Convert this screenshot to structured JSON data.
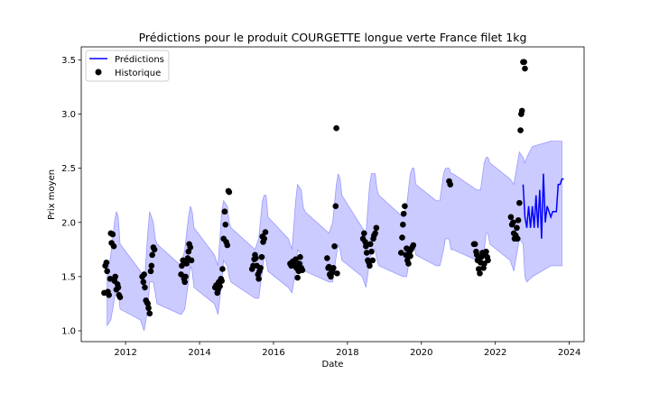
{
  "chart_data": {
    "type": "line",
    "title": "Prédictions pour le produit COURGETTE longue verte France filet 1kg",
    "xlabel": "Date",
    "ylabel": "Prix moyen",
    "xlim": [
      2010.8,
      2024.4
    ],
    "ylim": [
      0.9,
      3.62
    ],
    "x_ticks": [
      2012,
      2014,
      2016,
      2018,
      2020,
      2022,
      2024
    ],
    "y_ticks": [
      1.0,
      1.5,
      2.0,
      2.5,
      3.0,
      3.5
    ],
    "y_tick_labels": [
      "1.0",
      "1.5",
      "2.0",
      "2.5",
      "3.0",
      "3.5"
    ],
    "legend": {
      "placement": "top-left",
      "items": [
        {
          "label": "Prédictions",
          "kind": "line",
          "color": "#0000ff"
        },
        {
          "label": "Historique",
          "kind": "marker",
          "color": "#000000"
        }
      ]
    },
    "colors": {
      "prediction_line": "#0000ff",
      "interval_fill": "#c8c8ff",
      "interval_edge": "#9a9aff",
      "history": "#000000"
    },
    "confidence_band": {
      "x": [
        2011.5,
        2011.6,
        2011.7,
        2011.75,
        2011.8,
        2011.85,
        2012.4,
        2012.5,
        2012.6,
        2012.65,
        2012.75,
        2012.8,
        2012.85,
        2013.5,
        2013.6,
        2013.7,
        2013.75,
        2013.8,
        2013.85,
        2014.4,
        2014.5,
        2014.6,
        2014.65,
        2014.75,
        2014.8,
        2014.85,
        2015.5,
        2015.6,
        2015.7,
        2015.75,
        2015.8,
        2015.85,
        2016.4,
        2016.5,
        2016.6,
        2016.65,
        2016.75,
        2016.8,
        2016.85,
        2017.5,
        2017.6,
        2017.7,
        2017.75,
        2017.8,
        2017.85,
        2018.4,
        2018.5,
        2018.6,
        2018.65,
        2018.75,
        2018.8,
        2018.85,
        2019.5,
        2019.6,
        2019.7,
        2019.75,
        2019.8,
        2019.85,
        2020.4,
        2020.5,
        2020.6,
        2020.65,
        2020.75,
        2020.8,
        2020.85,
        2021.5,
        2021.6,
        2021.7,
        2021.75,
        2021.8,
        2021.85,
        2022.4,
        2022.5,
        2022.6,
        2022.65,
        2022.75,
        2022.8,
        2022.85,
        2023.0,
        2023.5,
        2023.8
      ],
      "upper": [
        1.5,
        1.7,
        2.0,
        2.1,
        2.05,
        1.8,
        1.55,
        1.4,
        1.9,
        2.1,
        2.0,
        1.85,
        1.8,
        1.6,
        1.75,
        2.05,
        2.15,
        2.1,
        1.95,
        1.7,
        1.6,
        2.1,
        2.2,
        2.15,
        2.0,
        1.95,
        1.75,
        1.85,
        2.2,
        2.25,
        2.25,
        2.05,
        1.85,
        1.75,
        2.2,
        2.35,
        2.3,
        2.15,
        2.1,
        1.9,
        2.0,
        2.35,
        2.45,
        2.4,
        2.25,
        1.95,
        1.9,
        2.35,
        2.45,
        2.45,
        2.3,
        2.25,
        2.05,
        2.15,
        2.45,
        2.5,
        2.5,
        2.35,
        2.2,
        2.2,
        2.45,
        2.5,
        2.5,
        2.45,
        2.45,
        2.3,
        2.3,
        2.55,
        2.6,
        2.6,
        2.55,
        2.4,
        2.35,
        2.55,
        2.65,
        2.6,
        2.55,
        2.6,
        2.7,
        2.75,
        2.75
      ],
      "lower": [
        1.05,
        1.1,
        1.3,
        1.4,
        1.4,
        1.2,
        1.1,
        1.0,
        1.2,
        1.45,
        1.45,
        1.35,
        1.25,
        1.15,
        1.2,
        1.45,
        1.6,
        1.55,
        1.4,
        1.25,
        1.15,
        1.45,
        1.65,
        1.6,
        1.5,
        1.45,
        1.3,
        1.3,
        1.55,
        1.7,
        1.65,
        1.55,
        1.4,
        1.35,
        1.55,
        1.75,
        1.7,
        1.6,
        1.55,
        1.45,
        1.45,
        1.7,
        1.8,
        1.75,
        1.65,
        1.5,
        1.4,
        1.65,
        1.75,
        1.75,
        1.65,
        1.6,
        1.5,
        1.5,
        1.7,
        1.8,
        1.8,
        1.7,
        1.6,
        1.6,
        1.75,
        1.85,
        1.85,
        1.75,
        1.75,
        1.65,
        1.6,
        1.75,
        1.9,
        1.9,
        1.8,
        1.65,
        1.55,
        1.75,
        1.85,
        1.8,
        1.5,
        1.45,
        1.5,
        1.6,
        1.6
      ]
    },
    "prediction": {
      "x": [
        2022.75,
        2022.8,
        2022.85,
        2022.9,
        2022.95,
        2023.0,
        2023.05,
        2023.1,
        2023.15,
        2023.2,
        2023.25,
        2023.3,
        2023.35,
        2023.4,
        2023.45,
        2023.5,
        2023.55,
        2023.6,
        2023.65,
        2023.7,
        2023.75,
        2023.8,
        2023.85
      ],
      "y": [
        2.35,
        2.05,
        1.95,
        2.15,
        1.95,
        2.15,
        1.95,
        2.25,
        1.95,
        2.3,
        1.85,
        2.45,
        2.0,
        2.15,
        2.1,
        2.05,
        2.1,
        2.1,
        2.1,
        2.35,
        2.35,
        2.4,
        2.4
      ]
    },
    "history": {
      "x": [
        2011.42,
        2011.45,
        2011.48,
        2011.5,
        2011.52,
        2011.55,
        2011.58,
        2011.6,
        2011.62,
        2011.65,
        2011.68,
        2011.7,
        2011.72,
        2011.75,
        2011.78,
        2011.8,
        2011.82,
        2011.85,
        2012.45,
        2012.48,
        2012.5,
        2012.52,
        2012.55,
        2012.58,
        2012.6,
        2012.62,
        2012.65,
        2012.68,
        2012.7,
        2012.72,
        2012.75,
        2012.78,
        2013.5,
        2013.52,
        2013.55,
        2013.58,
        2013.6,
        2013.62,
        2013.65,
        2013.68,
        2013.7,
        2013.72,
        2013.75,
        2013.78,
        2014.42,
        2014.45,
        2014.48,
        2014.5,
        2014.52,
        2014.55,
        2014.58,
        2014.6,
        2014.62,
        2014.65,
        2014.68,
        2014.7,
        2014.72,
        2014.75,
        2014.78,
        2014.8,
        2015.42,
        2015.45,
        2015.48,
        2015.5,
        2015.52,
        2015.55,
        2015.58,
        2015.6,
        2015.62,
        2015.65,
        2015.68,
        2015.7,
        2015.72,
        2015.75,
        2015.78,
        2016.45,
        2016.48,
        2016.5,
        2016.52,
        2016.55,
        2016.58,
        2016.6,
        2016.62,
        2016.65,
        2016.68,
        2016.7,
        2016.72,
        2016.75,
        2016.78,
        2017.45,
        2017.48,
        2017.5,
        2017.52,
        2017.55,
        2017.58,
        2017.6,
        2017.62,
        2017.65,
        2017.68,
        2017.7,
        2017.72,
        2018.42,
        2018.45,
        2018.48,
        2018.5,
        2018.52,
        2018.55,
        2018.58,
        2018.6,
        2018.62,
        2018.65,
        2018.68,
        2018.7,
        2018.72,
        2018.75,
        2018.78,
        2019.45,
        2019.48,
        2019.5,
        2019.52,
        2019.55,
        2019.58,
        2019.6,
        2019.62,
        2019.65,
        2019.68,
        2019.7,
        2019.72,
        2019.75,
        2019.78,
        2020.75,
        2020.78,
        2021.42,
        2021.45,
        2021.48,
        2021.5,
        2021.52,
        2021.55,
        2021.58,
        2021.6,
        2021.62,
        2021.65,
        2021.68,
        2021.7,
        2021.72,
        2021.75,
        2021.78,
        2021.8,
        2022.42,
        2022.45,
        2022.48,
        2022.5,
        2022.52,
        2022.55,
        2022.58,
        2022.6,
        2022.62,
        2022.65,
        2022.68,
        2022.7,
        2022.72,
        2022.75,
        2022.78,
        2022.8
      ],
      "y": [
        1.35,
        1.6,
        1.63,
        1.55,
        1.36,
        1.33,
        1.48,
        1.9,
        1.81,
        1.89,
        1.78,
        1.46,
        1.5,
        1.38,
        1.43,
        1.4,
        1.33,
        1.31,
        1.5,
        1.45,
        1.52,
        1.4,
        1.28,
        1.26,
        1.25,
        1.21,
        1.16,
        1.55,
        1.6,
        1.7,
        1.77,
        1.75,
        1.52,
        1.6,
        1.65,
        1.48,
        1.45,
        1.5,
        1.62,
        1.67,
        1.73,
        1.8,
        1.77,
        1.65,
        1.4,
        1.42,
        1.35,
        1.38,
        1.45,
        1.41,
        1.48,
        1.46,
        1.57,
        1.85,
        2.1,
        1.98,
        1.82,
        1.79,
        2.29,
        2.28,
        1.57,
        1.6,
        1.66,
        1.7,
        1.67,
        1.6,
        1.52,
        1.48,
        1.55,
        1.58,
        1.68,
        1.87,
        1.82,
        1.85,
        1.91,
        1.62,
        1.6,
        1.63,
        1.64,
        1.62,
        1.6,
        1.66,
        1.58,
        1.49,
        1.55,
        1.62,
        1.68,
        1.58,
        1.56,
        1.67,
        1.58,
        1.59,
        1.52,
        1.5,
        1.55,
        1.54,
        1.58,
        1.78,
        2.15,
        2.87,
        1.53,
        1.85,
        1.9,
        1.82,
        1.78,
        1.72,
        1.65,
        1.63,
        1.6,
        1.8,
        1.73,
        1.65,
        1.85,
        1.88,
        1.9,
        1.95,
        1.72,
        1.86,
        1.98,
        2.08,
        2.15,
        1.7,
        1.76,
        1.65,
        1.62,
        1.73,
        1.69,
        1.75,
        1.77,
        1.79,
        2.38,
        2.35,
        1.8,
        1.8,
        1.73,
        1.7,
        1.65,
        1.57,
        1.53,
        1.63,
        1.68,
        1.72,
        1.58,
        1.62,
        1.7,
        1.73,
        1.68,
        1.65,
        2.05,
        1.98,
        2.0,
        1.9,
        1.85,
        1.88,
        1.95,
        1.85,
        2.02,
        2.18,
        2.85,
        3.0,
        3.03,
        3.48,
        3.48,
        3.42
      ]
    }
  }
}
